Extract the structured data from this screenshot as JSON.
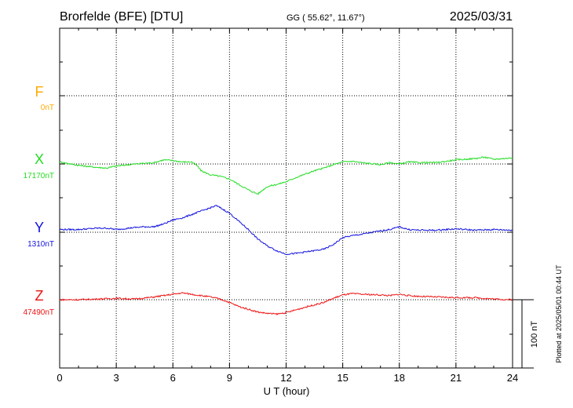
{
  "header": {
    "station": "Brorfelde (BFE)  [DTU]",
    "coords": "GG ( 55.62°,  11.67°)",
    "date": "2025/03/31"
  },
  "footer": {
    "plotted": "Plotted at 2025/05/01 00:44 UT"
  },
  "chart_data": {
    "type": "line",
    "title": "Brorfelde (BFE)  [DTU]",
    "xlabel": "U T (hour)",
    "xlim": [
      0,
      24
    ],
    "x_ticks": [
      "0",
      "3",
      "6",
      "9",
      "12",
      "15",
      "18",
      "21",
      "24"
    ],
    "grid": true,
    "scale_bar": "100 nT",
    "series": [
      {
        "name": "F",
        "baseline": "0nT",
        "color": "#ffaa00",
        "x": [],
        "values": []
      },
      {
        "name": "X",
        "baseline": "17170nT",
        "color": "#22dd22",
        "x": [
          0,
          1,
          2,
          2.5,
          3,
          4,
          5,
          5.5,
          6,
          6.5,
          7,
          7.3,
          7.5,
          8,
          8.5,
          9,
          9.5,
          10,
          10.5,
          11,
          11.5,
          12,
          12.5,
          13,
          13.5,
          14,
          14.5,
          15,
          15.5,
          16,
          17,
          17.5,
          18,
          18.5,
          19,
          20,
          21,
          22,
          22.5,
          23,
          24
        ],
        "values": [
          3,
          -2,
          -5,
          -6,
          -3,
          0,
          2,
          6,
          5,
          3,
          3,
          -3,
          -10,
          -16,
          -18,
          -22,
          -30,
          -38,
          -44,
          -33,
          -30,
          -26,
          -20,
          -15,
          -10,
          -6,
          -1,
          3,
          4,
          2,
          -1,
          2,
          0,
          3,
          2,
          2,
          6,
          8,
          10,
          7,
          9
        ]
      },
      {
        "name": "Y",
        "baseline": "1310nT",
        "color": "#1111dd",
        "x": [
          0,
          1,
          2,
          2.5,
          3,
          4,
          4.5,
          5,
          5.5,
          6,
          6.5,
          7,
          7.5,
          8,
          8.3,
          8.5,
          9,
          9.5,
          10,
          10.5,
          11,
          11.5,
          12,
          12.5,
          13,
          14,
          14.5,
          15,
          15.5,
          16,
          17,
          17.5,
          18,
          18.5,
          19,
          20,
          21,
          22,
          23,
          24
        ],
        "values": [
          4,
          4,
          6,
          6,
          4,
          7,
          8,
          8,
          12,
          18,
          21,
          26,
          31,
          36,
          39,
          36,
          28,
          16,
          4,
          -10,
          -20,
          -27,
          -32,
          -31,
          -29,
          -25,
          -18,
          -8,
          -5,
          -3,
          2,
          4,
          8,
          4,
          3,
          3,
          5,
          3,
          4,
          3
        ]
      },
      {
        "name": "Z",
        "baseline": "47490nT",
        "color": "#ee1111",
        "x": [
          0,
          1,
          2,
          3,
          4,
          5,
          5.5,
          6,
          6.5,
          7,
          7.5,
          8,
          8.5,
          9,
          9.5,
          10,
          10.5,
          11,
          11.5,
          12,
          12.5,
          13,
          14,
          14.5,
          15,
          15.5,
          16,
          17,
          17.5,
          18,
          18.5,
          19,
          20,
          21,
          22,
          23,
          24
        ],
        "values": [
          0,
          0,
          1,
          2,
          1,
          4,
          6,
          8,
          10,
          8,
          6,
          4,
          1,
          -4,
          -10,
          -14,
          -18,
          -20,
          -21,
          -19,
          -15,
          -11,
          -4,
          2,
          7,
          9,
          8,
          7,
          6,
          8,
          6,
          5,
          4,
          3,
          3,
          1,
          0
        ]
      }
    ]
  }
}
